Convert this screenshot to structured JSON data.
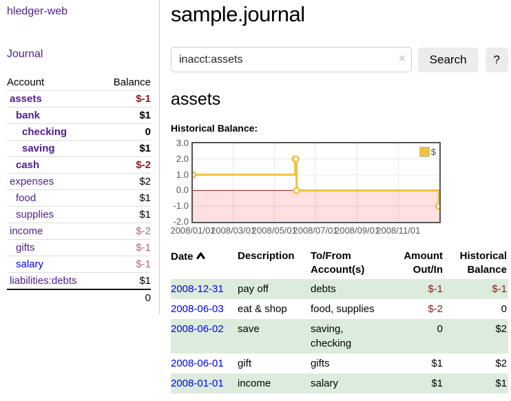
{
  "sidebar": {
    "app_title": "hledger-web",
    "journal_link": "Journal",
    "accounts_table": {
      "headers": [
        "Account",
        "Balance"
      ],
      "rows": [
        {
          "account": "assets",
          "depth": 1,
          "bold": true,
          "link_color": "purple",
          "balance": "$-1",
          "balance_class": "neg-strong"
        },
        {
          "account": "bank",
          "depth": 2,
          "bold": true,
          "link_color": "purple",
          "balance": "$1",
          "balance_class": "plain"
        },
        {
          "account": "checking",
          "depth": 3,
          "bold": true,
          "link_color": "purple",
          "balance": "0",
          "balance_class": "plain"
        },
        {
          "account": "saving",
          "depth": 3,
          "bold": true,
          "link_color": "purple",
          "balance": "$1",
          "balance_class": "plain"
        },
        {
          "account": "cash",
          "depth": 2,
          "bold": true,
          "link_color": "purple",
          "balance": "$-2",
          "balance_class": "neg-strong"
        },
        {
          "account": "expenses",
          "depth": 1,
          "bold": false,
          "link_color": "purple",
          "balance": "$2",
          "balance_class": "plain"
        },
        {
          "account": "food",
          "depth": 2,
          "bold": false,
          "link_color": "purple",
          "balance": "$1",
          "balance_class": "plain"
        },
        {
          "account": "supplies",
          "depth": 2,
          "bold": false,
          "link_color": "purple",
          "balance": "$1",
          "balance_class": "plain"
        },
        {
          "account": "income",
          "depth": 1,
          "bold": false,
          "link_color": "purple",
          "balance": "$-2",
          "balance_class": "neg-soft"
        },
        {
          "account": "gifts",
          "depth": 2,
          "bold": false,
          "link_color": "purple",
          "balance": "$-1",
          "balance_class": "neg-soft"
        },
        {
          "account": "salary",
          "depth": 2,
          "bold": false,
          "link_color": "blue",
          "balance": "$-1",
          "balance_class": "neg-soft"
        },
        {
          "account": "liabilities:debts",
          "depth": 1,
          "bold": false,
          "link_color": "purple",
          "balance": "$1",
          "balance_class": "plain"
        }
      ],
      "total": "0"
    }
  },
  "header": {
    "title": "sample.journal"
  },
  "search": {
    "value": "inacct:assets",
    "clear_icon": "×",
    "search_button": "Search",
    "help_button": "?"
  },
  "account_page": {
    "heading": "assets",
    "chart_label": "Historical Balance:"
  },
  "chart_data": {
    "type": "line",
    "step": true,
    "title": "Historical Balance",
    "series": [
      {
        "name": "$",
        "color": "#edc240",
        "points": [
          {
            "date": "2008-01-01",
            "day": 0,
            "value": 1
          },
          {
            "date": "2008-06-01",
            "day": 152,
            "value": 2
          },
          {
            "date": "2008-06-02",
            "day": 153,
            "value": 2
          },
          {
            "date": "2008-06-03",
            "day": 154,
            "value": 0
          },
          {
            "date": "2008-12-31",
            "day": 365,
            "value": -1
          }
        ]
      }
    ],
    "x_ticks": [
      {
        "label": "2008/01/01",
        "day": 0
      },
      {
        "label": "2008/03/01",
        "day": 60
      },
      {
        "label": "2008/05/01",
        "day": 121
      },
      {
        "label": "2008/07/01",
        "day": 182
      },
      {
        "label": "2008/09/01",
        "day": 244
      },
      {
        "label": "2008/11/01",
        "day": 305
      }
    ],
    "x_range_days": [
      0,
      366
    ],
    "y_ticks": [
      {
        "label": "3.0",
        "value": 3
      },
      {
        "label": "2.0",
        "value": 2
      },
      {
        "label": "1.0",
        "value": 1
      },
      {
        "label": "0.0",
        "value": 0
      },
      {
        "label": "-1.0",
        "value": -1
      },
      {
        "label": "-2.0",
        "value": -2
      }
    ],
    "ylim": [
      -2,
      3
    ],
    "legend": {
      "label": "$",
      "position": "top-right"
    },
    "negative_region_below": 0,
    "grid": true
  },
  "register": {
    "headers": {
      "date": "Date",
      "description": "Description",
      "accounts": "To/From Account(s)",
      "amount": "Amount Out/In",
      "balance": "Historical Balance"
    },
    "sort_icon": "chevron-up",
    "rows": [
      {
        "date": "2008-12-31",
        "description": "pay off",
        "accounts": "debts",
        "amount": "$-1",
        "balance": "$-1",
        "amount_negative": true,
        "balance_negative": true
      },
      {
        "date": "2008-06-03",
        "description": "eat & shop",
        "accounts": "food, supplies",
        "amount": "$-2",
        "balance": "0",
        "amount_negative": true,
        "balance_negative": false
      },
      {
        "date": "2008-06-02",
        "description": "save",
        "accounts": "saving, checking",
        "amount": "0",
        "balance": "$2",
        "amount_negative": false,
        "balance_negative": false
      },
      {
        "date": "2008-06-01",
        "description": "gift",
        "accounts": "gifts",
        "amount": "$1",
        "balance": "$2",
        "amount_negative": false,
        "balance_negative": false
      },
      {
        "date": "2008-01-01",
        "description": "income",
        "accounts": "salary",
        "amount": "$1",
        "balance": "$1",
        "amount_negative": false,
        "balance_negative": false
      }
    ]
  },
  "colors": {
    "link_purple": "#511b8e",
    "link_blue": "#0000ee",
    "negative_strong": "#8b1a1a",
    "negative_soft": "#a96b6b",
    "row_green": "#dcecdc",
    "chart_line": "#edc240",
    "chart_border": "#545454",
    "chart_gridline": "#e6e6e6",
    "chart_zero_line": "#991717",
    "chart_negative_fill": "rgba(255,0,0,0.12)",
    "axis_text": "#545454",
    "button_bg": "#ececec"
  }
}
